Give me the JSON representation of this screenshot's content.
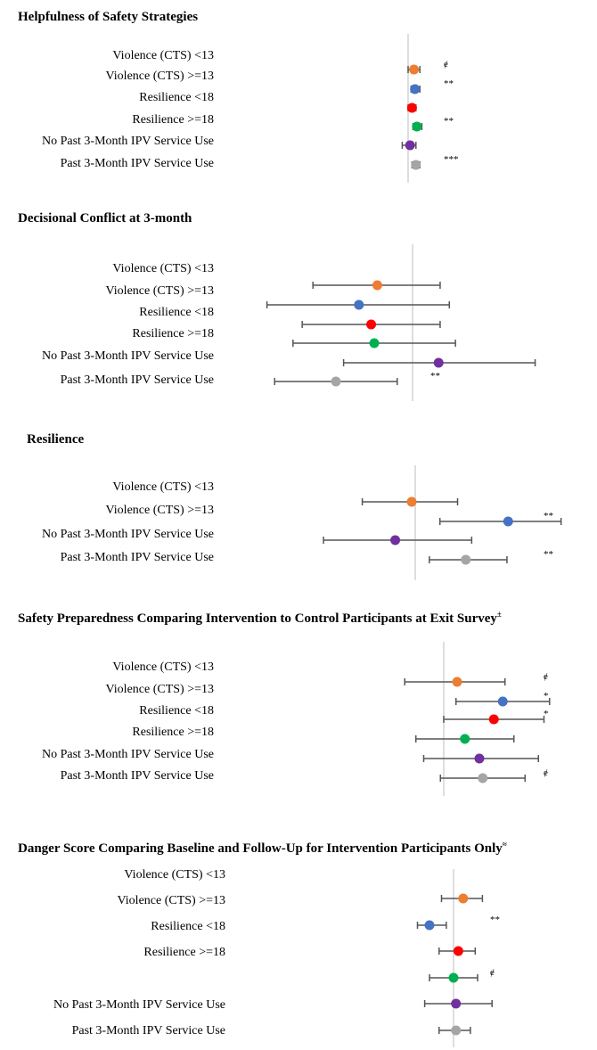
{
  "chart_data": [
    {
      "type": "scatter",
      "title": "Helpfulness of Safety Strategies",
      "categories": [
        "Violence (CTS) <13",
        "Violence (CTS) >=13",
        "Resilience <18",
        "Resilience >=18",
        "No Past 3-Month IPV Service Use",
        "Past 3-Month IPV Service Use"
      ],
      "estimate": [
        0.06,
        0.07,
        0.04,
        0.09,
        0.02,
        0.08
      ],
      "ci_low": [
        0.0,
        0.03,
        0.0,
        0.05,
        -0.06,
        0.04
      ],
      "ci_high": [
        0.12,
        0.12,
        0.08,
        0.14,
        0.08,
        0.12
      ],
      "significance": [
        "ɇ",
        "**",
        "",
        "**",
        "",
        "***"
      ],
      "reference_line": 0
    },
    {
      "type": "scatter",
      "title": "Decisional Conflict at 3-month",
      "categories": [
        "Violence (CTS) <13",
        "Violence (CTS) >=13",
        "Resilience <18",
        "Resilience >=18",
        "No Past 3-Month IPV Service Use",
        "Past 3-Month IPV Service Use"
      ],
      "estimate": [
        -0.23,
        -0.35,
        -0.27,
        -0.25,
        0.17,
        -0.5
      ],
      "ci_low": [
        -0.65,
        -0.95,
        -0.72,
        -0.78,
        -0.45,
        -0.9
      ],
      "ci_high": [
        0.18,
        0.24,
        0.18,
        0.28,
        0.8,
        -0.1
      ],
      "significance": [
        "",
        "",
        "",
        "",
        "",
        "**"
      ],
      "reference_line": 0
    },
    {
      "type": "scatter",
      "title": "Resilience",
      "categories": [
        "Violence (CTS) <13",
        "Violence (CTS) >=13",
        "No Past 3-Month IPV Service Use",
        "Past 3-Month IPV Service Use"
      ],
      "estimate": [
        -0.03,
        0.79,
        -0.17,
        0.43
      ],
      "ci_low": [
        -0.45,
        0.21,
        -0.78,
        0.12
      ],
      "ci_high": [
        0.36,
        1.24,
        0.48,
        0.78
      ],
      "significance": [
        "",
        "**",
        "",
        "**"
      ],
      "reference_line": 0
    },
    {
      "type": "scatter",
      "title": "Safety Preparedness Comparing Intervention to Control Participants at Exit Survey",
      "title_marker": "±",
      "categories": [
        "Violence (CTS) <13",
        "Violence (CTS) >=13",
        "Resilience <18",
        "Resilience >=18",
        "No Past 3-Month IPV Service Use",
        "Past 3-Month IPV Service Use"
      ],
      "estimate": [
        0.12,
        0.53,
        0.45,
        0.19,
        0.32,
        0.35
      ],
      "ci_low": [
        -0.35,
        0.11,
        0.0,
        -0.25,
        -0.18,
        -0.03
      ],
      "ci_high": [
        0.55,
        0.95,
        0.9,
        0.63,
        0.85,
        0.73
      ],
      "significance": [
        "ɇ",
        "*",
        "*",
        "",
        "",
        "ɇ"
      ],
      "reference_line": 0
    },
    {
      "type": "scatter",
      "title": "Danger Score Comparing Baseline and Follow-Up for Intervention Participants Only",
      "title_marker": "≈",
      "categories": [
        "Violence (CTS) <13",
        "Violence (CTS) >=13",
        "Resilience <18",
        "Resilience >=18",
        "No Past 3-Month IPV Service Use",
        "Past 3-Month IPV Service Use"
      ],
      "estimate": [
        0.4,
        -1.0,
        0.2,
        0.0,
        0.1,
        0.1
      ],
      "ci_low": [
        -0.5,
        -1.5,
        -0.6,
        -1.0,
        -1.2,
        -0.6
      ],
      "ci_high": [
        1.2,
        -0.3,
        0.9,
        1.0,
        1.6,
        0.7
      ],
      "significance": [
        "",
        "**",
        "",
        "ɇ",
        "",
        ""
      ],
      "reference_line": 0
    }
  ],
  "series_colors": [
    "#ED7D31",
    "#4472C4",
    "#FF0000",
    "#00B050",
    "#7030A0",
    "#A5A5A5"
  ],
  "grid": false
}
